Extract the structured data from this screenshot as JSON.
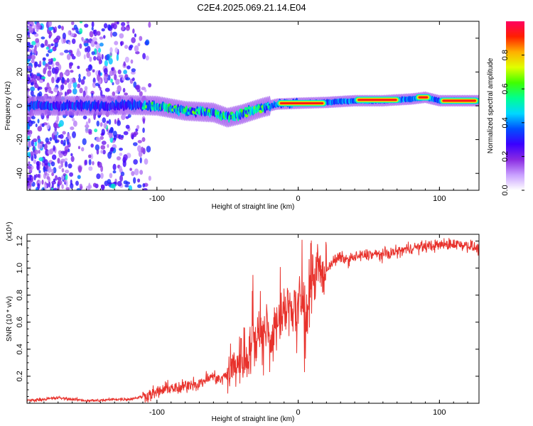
{
  "figure": {
    "title": "C2E4.2025.069.21.14.E04"
  },
  "chart_data": [
    {
      "type": "heatmap",
      "title": "C2E4.2025.069.21.14.E04",
      "xlabel": "Height of straight line (km)",
      "ylabel": "Frequency (Hz)",
      "xlim": [
        -192,
        128
      ],
      "ylim": [
        -50,
        50
      ],
      "xticks": [
        -100,
        0,
        100
      ],
      "yticks": [
        -40,
        -20,
        0,
        20,
        40
      ],
      "colorbar": {
        "label": "Normalized spectral amplitude",
        "range": [
          0,
          1
        ],
        "ticks": [
          0.0,
          0.2,
          0.4,
          0.6,
          0.8
        ],
        "tick_labels": [
          "0.0",
          "0.2",
          "0.4",
          "0.6",
          "0.8"
        ],
        "colormap": [
          "#ffffff",
          "#c9a0ff",
          "#8a2be2",
          "#3a00ff",
          "#0050ff",
          "#00d8ff",
          "#00ff90",
          "#40ff00",
          "#e0ff00",
          "#ffb000",
          "#ff2000",
          "#ff0060"
        ]
      },
      "ridge": {
        "description_points": [
          {
            "x": -190,
            "y": 0
          },
          {
            "x": -150,
            "y": 0
          },
          {
            "x": -120,
            "y": 0.5
          },
          {
            "x": -100,
            "y": 0
          },
          {
            "x": -80,
            "y": -3
          },
          {
            "x": -60,
            "y": -4
          },
          {
            "x": -50,
            "y": -7
          },
          {
            "x": -40,
            "y": -5
          },
          {
            "x": -25,
            "y": -1
          },
          {
            "x": -15,
            "y": 1
          },
          {
            "x": 0,
            "y": 1.5
          },
          {
            "x": 20,
            "y": 2
          },
          {
            "x": 40,
            "y": 3
          },
          {
            "x": 60,
            "y": 3
          },
          {
            "x": 80,
            "y": 4
          },
          {
            "x": 90,
            "y": 5
          },
          {
            "x": 100,
            "y": 3
          },
          {
            "x": 128,
            "y": 3
          }
        ],
        "strong_segments": [
          {
            "x0": -15,
            "x1": 20,
            "y": 1.5
          },
          {
            "x0": 40,
            "x1": 72,
            "y": 3.5
          },
          {
            "x0": 83,
            "x1": 94,
            "y": 5
          },
          {
            "x0": 100,
            "x1": 128,
            "y": 3
          }
        ],
        "noisy_region_x": [
          -192,
          -115
        ]
      }
    },
    {
      "type": "line",
      "xlabel": "Height of straight line (km)",
      "ylabel": "SNR (10 * v/v)",
      "y_multiplier_label": "(x10⁴)",
      "xlim": [
        -192,
        128
      ],
      "ylim": [
        0,
        1.25
      ],
      "xticks": [
        -100,
        0,
        100
      ],
      "yticks": [
        0.2,
        0.4,
        0.6,
        0.8,
        1.0,
        1.2
      ],
      "ytick_labels": [
        "0.2",
        "0.4",
        "0.6",
        "0.8",
        "1.0",
        "1.2"
      ],
      "color": "#e8322c",
      "series": [
        {
          "name": "SNR",
          "x": [
            -192,
            -180,
            -170,
            -160,
            -150,
            -140,
            -130,
            -120,
            -110,
            -100,
            -95,
            -90,
            -85,
            -80,
            -75,
            -70,
            -65,
            -60,
            -55,
            -50,
            -45,
            -42,
            -38,
            -35,
            -30,
            -28,
            -25,
            -22,
            -20,
            -17,
            -15,
            -12,
            -10,
            -8,
            -5,
            -2,
            0,
            5,
            8,
            10,
            12,
            15,
            18,
            22,
            25,
            30,
            35,
            40,
            50,
            60,
            70,
            80,
            90,
            100,
            110,
            120,
            128
          ],
          "y": [
            0.02,
            0.03,
            0.04,
            0.03,
            0.02,
            0.02,
            0.03,
            0.03,
            0.05,
            0.08,
            0.1,
            0.12,
            0.1,
            0.13,
            0.15,
            0.14,
            0.18,
            0.2,
            0.17,
            0.22,
            0.28,
            0.32,
            0.35,
            0.4,
            0.45,
            0.55,
            0.5,
            0.6,
            0.45,
            0.5,
            0.6,
            0.65,
            0.65,
            0.7,
            0.72,
            0.68,
            0.75,
            0.7,
            0.8,
            0.9,
            0.85,
            1.0,
            0.95,
            1.02,
            1.05,
            1.08,
            1.06,
            1.08,
            1.1,
            1.1,
            1.12,
            1.15,
            1.16,
            1.17,
            1.18,
            1.17,
            1.14
          ]
        }
      ]
    }
  ]
}
